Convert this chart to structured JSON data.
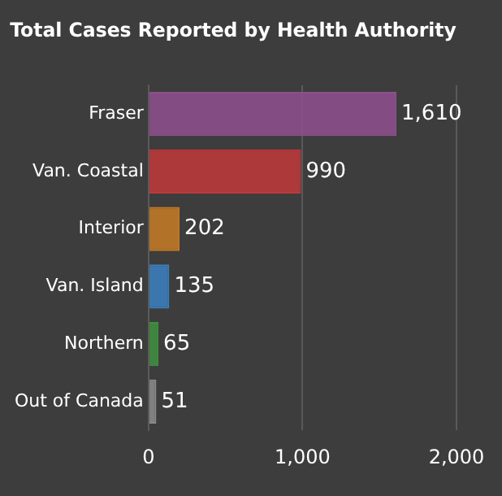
{
  "chart_data": {
    "type": "bar",
    "orientation": "horizontal",
    "title": "Total Cases Reported by Health Authority",
    "categories": [
      "Fraser",
      "Van. Coastal",
      "Interior",
      "Van. Island",
      "Northern",
      "Out of Canada"
    ],
    "values": [
      1610,
      990,
      202,
      135,
      65,
      51
    ],
    "colors": [
      "#8e4f8e",
      "#c0393b",
      "#c47a25",
      "#3b7fbf",
      "#3f8f3f",
      "#8a8a8a"
    ],
    "value_labels": [
      "1,610",
      "990",
      "202",
      "135",
      "65",
      "51"
    ],
    "xlim": [
      0,
      2000
    ],
    "xticks": [
      0,
      {
        "value": 1000,
        "label": "1,000"
      },
      {
        "value": 2000,
        "label": "2,000"
      }
    ],
    "grid": "x",
    "legend": false
  }
}
